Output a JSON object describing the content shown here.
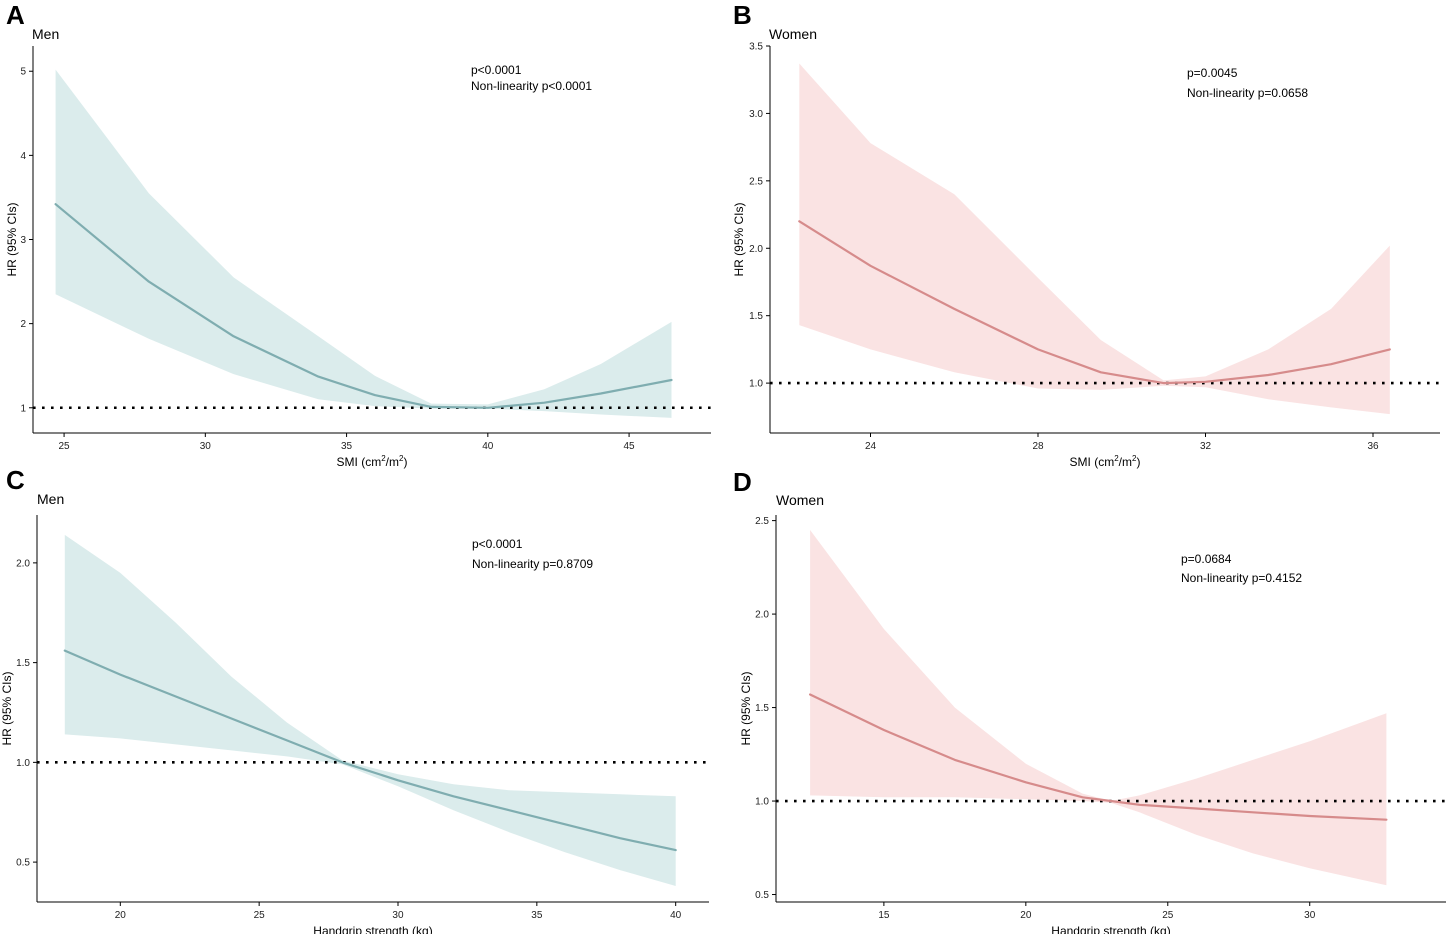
{
  "figure": {
    "panels": [
      "A",
      "B",
      "C",
      "D"
    ]
  },
  "chart_data": [
    {
      "type": "line",
      "panel": "A",
      "title": "Men",
      "xlabel": "SMI (cm",
      "xlabel_unit": "/m",
      "xlabel_sup": "2",
      "xlabel_close": ")",
      "ylabel": "HR (95% CIs)",
      "xlim": [
        23.9,
        47.9
      ],
      "ylim": [
        0.7,
        5.3
      ],
      "xticks": [
        25,
        30,
        35,
        40,
        45
      ],
      "yticks": [
        1,
        2,
        3,
        4,
        5
      ],
      "reference_line": 1,
      "annotations": [
        "p<0.0001",
        "Non-linearity p<0.0001"
      ],
      "color": "#7fadb0",
      "band_color": "#dbecec",
      "series": [
        {
          "name": "HR",
          "x": [
            24.7,
            28,
            31,
            34,
            36,
            38,
            40,
            42,
            44,
            46.5
          ],
          "y": [
            3.42,
            2.5,
            1.85,
            1.37,
            1.15,
            1.01,
            1.0,
            1.06,
            1.17,
            1.33
          ]
        },
        {
          "name": "upper",
          "x": [
            24.7,
            28,
            31,
            34,
            36,
            38,
            40,
            42,
            44,
            46.5
          ],
          "y": [
            5.02,
            3.55,
            2.55,
            1.85,
            1.38,
            1.05,
            1.04,
            1.22,
            1.52,
            2.02
          ]
        },
        {
          "name": "lower",
          "x": [
            24.7,
            28,
            31,
            34,
            36,
            38,
            40,
            42,
            44,
            46.5
          ],
          "y": [
            2.35,
            1.82,
            1.4,
            1.1,
            1.02,
            0.99,
            0.99,
            0.96,
            0.92,
            0.88
          ]
        }
      ]
    },
    {
      "type": "line",
      "panel": "B",
      "title": "Women",
      "xlabel": "SMI (cm",
      "xlabel_unit": "/m",
      "xlabel_sup": "2",
      "xlabel_close": ")",
      "ylabel": "HR (95% CIs)",
      "xlim": [
        21.6,
        37.6
      ],
      "ylim": [
        0.63,
        3.5
      ],
      "xticks": [
        24,
        28,
        32,
        36
      ],
      "xtick_labels": [
        "24",
        "28",
        "32",
        "36"
      ],
      "yticks": [
        1.0,
        1.5,
        2.0,
        2.5,
        3.0,
        3.5
      ],
      "ytick_labels": [
        "1.0",
        "1.5",
        "2.0",
        "2.5",
        "3.0",
        "3.5"
      ],
      "reference_line": 1,
      "annotations": [
        "p=0.0045",
        "Non-linearity p=0.0658"
      ],
      "color": "#d68b8b",
      "band_color": "#fae3e3",
      "series": [
        {
          "name": "HR",
          "x": [
            22.3,
            24,
            26,
            28,
            29.5,
            31,
            32,
            33.5,
            35,
            36.4
          ],
          "y": [
            2.2,
            1.87,
            1.55,
            1.25,
            1.08,
            1.0,
            1.01,
            1.06,
            1.14,
            1.25
          ]
        },
        {
          "name": "upper",
          "x": [
            22.3,
            24,
            26,
            28,
            29.5,
            31,
            32,
            33.5,
            35,
            36.4
          ],
          "y": [
            3.37,
            2.78,
            2.4,
            1.78,
            1.32,
            1.02,
            1.05,
            1.25,
            1.55,
            2.02
          ]
        },
        {
          "name": "lower",
          "x": [
            22.3,
            24,
            26,
            28,
            29.5,
            31,
            32,
            33.5,
            35,
            36.4
          ],
          "y": [
            1.43,
            1.25,
            1.08,
            0.96,
            0.95,
            0.98,
            0.97,
            0.88,
            0.82,
            0.77
          ]
        }
      ]
    },
    {
      "type": "line",
      "panel": "C",
      "title": "Men",
      "xlabel": "Handgrip strength (kg)",
      "ylabel": "HR (95% CIs)",
      "xlim": [
        17,
        41.2
      ],
      "ylim": [
        0.3,
        2.24
      ],
      "xticks": [
        20,
        25,
        30,
        35,
        40
      ],
      "yticks": [
        0.5,
        1.0,
        1.5,
        2.0
      ],
      "ytick_labels": [
        "0.5",
        "1.0",
        "1.5",
        "2.0"
      ],
      "reference_line": 1,
      "annotations": [
        "p<0.0001",
        "Non-linearity p=0.8709"
      ],
      "color": "#7fadb0",
      "band_color": "#dbecec",
      "series": [
        {
          "name": "HR",
          "x": [
            18,
            20,
            22,
            24,
            26,
            28,
            30,
            32,
            34,
            36,
            38,
            40
          ],
          "y": [
            1.56,
            1.44,
            1.33,
            1.22,
            1.11,
            1.0,
            0.91,
            0.83,
            0.76,
            0.69,
            0.62,
            0.56
          ]
        },
        {
          "name": "upper",
          "x": [
            18,
            20,
            22,
            24,
            26,
            28,
            30,
            32,
            34,
            36,
            38,
            40
          ],
          "y": [
            2.14,
            1.95,
            1.7,
            1.43,
            1.2,
            1.01,
            0.94,
            0.89,
            0.86,
            0.85,
            0.84,
            0.83
          ]
        },
        {
          "name": "lower",
          "x": [
            18,
            20,
            22,
            24,
            26,
            28,
            30,
            32,
            34,
            36,
            38,
            40
          ],
          "y": [
            1.14,
            1.12,
            1.09,
            1.06,
            1.03,
            0.99,
            0.88,
            0.76,
            0.65,
            0.55,
            0.46,
            0.38
          ]
        }
      ]
    },
    {
      "type": "line",
      "panel": "D",
      "title": "Women",
      "xlabel": "Handgrip strength (kg)",
      "ylabel": "HR (95% CIs)",
      "xlim": [
        11.2,
        34.8
      ],
      "ylim": [
        0.46,
        2.53
      ],
      "xticks": [
        15,
        20,
        25,
        30
      ],
      "yticks": [
        0.5,
        1.0,
        1.5,
        2.0,
        2.5
      ],
      "ytick_labels": [
        "0.5",
        "1.0",
        "1.5",
        "2.0",
        "2.5"
      ],
      "reference_line": 1,
      "annotations": [
        "p=0.0684",
        "Non-linearity p=0.4152"
      ],
      "color": "#d68b8b",
      "band_color": "#fae3e3",
      "series": [
        {
          "name": "HR",
          "x": [
            12.4,
            15,
            17.5,
            20,
            22,
            23,
            24,
            26,
            28,
            30,
            32.7
          ],
          "y": [
            1.57,
            1.38,
            1.22,
            1.1,
            1.02,
            1.0,
            0.98,
            0.96,
            0.94,
            0.92,
            0.9
          ]
        },
        {
          "name": "upper",
          "x": [
            12.4,
            15,
            17.5,
            20,
            22,
            23,
            24,
            26,
            28,
            30,
            32.7
          ],
          "y": [
            2.45,
            1.92,
            1.5,
            1.2,
            1.04,
            1.0,
            1.03,
            1.12,
            1.22,
            1.32,
            1.47
          ]
        },
        {
          "name": "lower",
          "x": [
            12.4,
            15,
            17.5,
            20,
            22,
            23,
            24,
            26,
            28,
            30,
            32.7
          ],
          "y": [
            1.03,
            1.02,
            1.02,
            1.01,
            1.0,
            0.99,
            0.94,
            0.82,
            0.72,
            0.64,
            0.55
          ]
        }
      ]
    }
  ]
}
